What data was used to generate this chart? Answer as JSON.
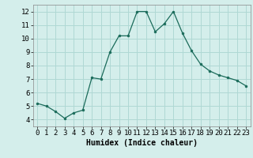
{
  "x": [
    0,
    1,
    2,
    3,
    4,
    5,
    6,
    7,
    8,
    9,
    10,
    11,
    12,
    13,
    14,
    15,
    16,
    17,
    18,
    19,
    20,
    21,
    22,
    23
  ],
  "y": [
    5.2,
    5.0,
    4.6,
    4.1,
    4.5,
    4.7,
    7.1,
    7.0,
    9.0,
    10.2,
    10.2,
    12.0,
    12.0,
    10.5,
    11.1,
    12.0,
    10.4,
    9.1,
    8.1,
    7.6,
    7.3,
    7.1,
    6.9,
    6.5
  ],
  "xlabel": "Humidex (Indice chaleur)",
  "xlim": [
    -0.5,
    23.5
  ],
  "ylim": [
    3.5,
    12.5
  ],
  "yticks": [
    4,
    5,
    6,
    7,
    8,
    9,
    10,
    11,
    12
  ],
  "xticks": [
    0,
    1,
    2,
    3,
    4,
    5,
    6,
    7,
    8,
    9,
    10,
    11,
    12,
    13,
    14,
    15,
    16,
    17,
    18,
    19,
    20,
    21,
    22,
    23
  ],
  "line_color": "#1a6b5a",
  "marker": "o",
  "marker_size": 2.0,
  "bg_color": "#d4eeeb",
  "grid_color": "#afd8d4",
  "xlabel_fontsize": 7,
  "tick_fontsize": 6.5
}
